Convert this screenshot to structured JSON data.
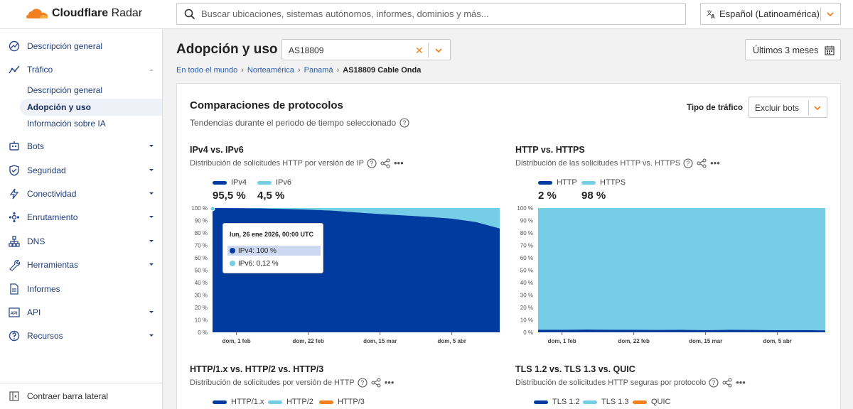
{
  "app": {
    "logo_text_1": "Cloudflare",
    "logo_text_2": "Radar"
  },
  "search": {
    "placeholder": "Buscar ubicaciones, sistemas autónomos, informes, dominios y más..."
  },
  "language": {
    "label": "Español (Latinoamérica)"
  },
  "sidebar": {
    "items": [
      {
        "label": "Descripción general",
        "icon": "chart-icon"
      },
      {
        "label": "Tráfico",
        "icon": "traffic-icon"
      },
      {
        "label": "Bots",
        "icon": "bot-icon"
      },
      {
        "label": "Seguridad",
        "icon": "shield-icon"
      },
      {
        "label": "Conectividad",
        "icon": "bolt-icon"
      },
      {
        "label": "Enrutamiento",
        "icon": "routing-icon"
      },
      {
        "label": "DNS",
        "icon": "dns-icon"
      },
      {
        "label": "Herramientas",
        "icon": "wrench-icon"
      },
      {
        "label": "Informes",
        "icon": "report-icon"
      },
      {
        "label": "API",
        "icon": "api-icon"
      },
      {
        "label": "Recursos",
        "icon": "help-icon"
      }
    ],
    "traffic_sub": [
      "Descripción general",
      "Adopción y uso",
      "Información sobre IA"
    ],
    "collapse_label": "Contraer barra lateral"
  },
  "header": {
    "title": "Adopción y uso",
    "asn_value": "AS18809",
    "date_range": "Últimos 3 meses"
  },
  "breadcrumb": {
    "items": [
      "En todo el mundo",
      "Norteamérica",
      "Panamá"
    ],
    "current": "AS18809 Cable Onda"
  },
  "card": {
    "title": "Comparaciones de protocolos",
    "subtitle": "Tendencias durante el periodo de tiempo seleccionado",
    "traffic_type_label": "Tipo de tráfico",
    "traffic_type_value": "Excluir bots"
  },
  "charts": {
    "ip": {
      "title": "IPv4 vs. IPv6",
      "subtitle": "Distribución de solicitudes HTTP por versión de IP",
      "legend": [
        "IPv4",
        "IPv6"
      ],
      "values": [
        "95,5 %",
        "4,5 %"
      ],
      "tooltip": {
        "header": "lun, 26 ene 2026, 00:00 UTC",
        "rows": [
          "IPv4: 100 %",
          "IPv6: 0,12 %"
        ]
      }
    },
    "http": {
      "title": "HTTP vs. HTTPS",
      "subtitle": "Distribución de las solicitudes HTTP vs. HTTPS",
      "legend": [
        "HTTP",
        "HTTPS"
      ],
      "values": [
        "2 %",
        "98 %"
      ]
    },
    "httpver": {
      "title": "HTTP/1.x vs. HTTP/2 vs. HTTP/3",
      "subtitle": "Distribución de solicitudes por versión de HTTP",
      "legend": [
        "HTTP/1.x",
        "HTTP/2",
        "HTTP/3"
      ]
    },
    "tls": {
      "title": "TLS 1.2 vs. TLS 1.3 vs. QUIC",
      "subtitle": "Distribución de solicitudes HTTP seguras por protocolo",
      "legend": [
        "TLS 1.2",
        "TLS 1.3",
        "QUIC"
      ]
    }
  },
  "colors": {
    "dark_blue": "#003ca0",
    "light_blue": "#76cde6",
    "orange": "#f38020"
  },
  "chart_data": [
    {
      "type": "area",
      "title": "IPv4 vs. IPv6",
      "x_ticks": [
        "dom, 1 feb",
        "dom, 22 feb",
        "dom, 15 mar",
        "dom, 5 abr"
      ],
      "y_ticks": [
        "0 %",
        "10 %",
        "20 %",
        "30 %",
        "40 %",
        "50 %",
        "60 %",
        "70 %",
        "80 %",
        "90 %",
        "100 %"
      ],
      "ylim": [
        0,
        100
      ],
      "x": [
        0,
        7,
        14,
        21,
        28,
        35,
        42,
        49,
        56,
        63,
        70,
        77,
        84
      ],
      "series": [
        {
          "name": "IPv4",
          "values": [
            100,
            99.9,
            99.7,
            99.3,
            98.7,
            97.9,
            96.5,
            95.2,
            94.1,
            92.9,
            91.5,
            88.8,
            83.6
          ]
        },
        {
          "name": "IPv6",
          "values": [
            0.12,
            0.1,
            0.3,
            0.7,
            1.3,
            2.1,
            3.5,
            4.8,
            5.9,
            7.1,
            8.5,
            11.2,
            16.4
          ]
        }
      ]
    },
    {
      "type": "area",
      "title": "HTTP vs. HTTPS",
      "x_ticks": [
        "dom, 1 feb",
        "dom, 22 feb",
        "dom, 15 mar",
        "dom, 5 abr"
      ],
      "y_ticks": [
        "0 %",
        "10 %",
        "20 %",
        "30 %",
        "40 %",
        "50 %",
        "60 %",
        "70 %",
        "80 %",
        "90 %",
        "100 %"
      ],
      "ylim": [
        0,
        100
      ],
      "x": [
        0,
        7,
        14,
        21,
        28,
        35,
        42,
        49,
        56,
        63,
        70,
        77,
        84
      ],
      "series": [
        {
          "name": "HTTP",
          "values": [
            2.1,
            2.0,
            2.2,
            2.1,
            2.0,
            1.9,
            2.0,
            1.8,
            2.0,
            1.9,
            1.7,
            1.8,
            1.6
          ]
        },
        {
          "name": "HTTPS",
          "values": [
            97.9,
            98.0,
            97.8,
            97.9,
            98.0,
            98.1,
            98.0,
            98.2,
            98.0,
            98.1,
            98.3,
            98.2,
            98.4
          ]
        }
      ]
    }
  ]
}
